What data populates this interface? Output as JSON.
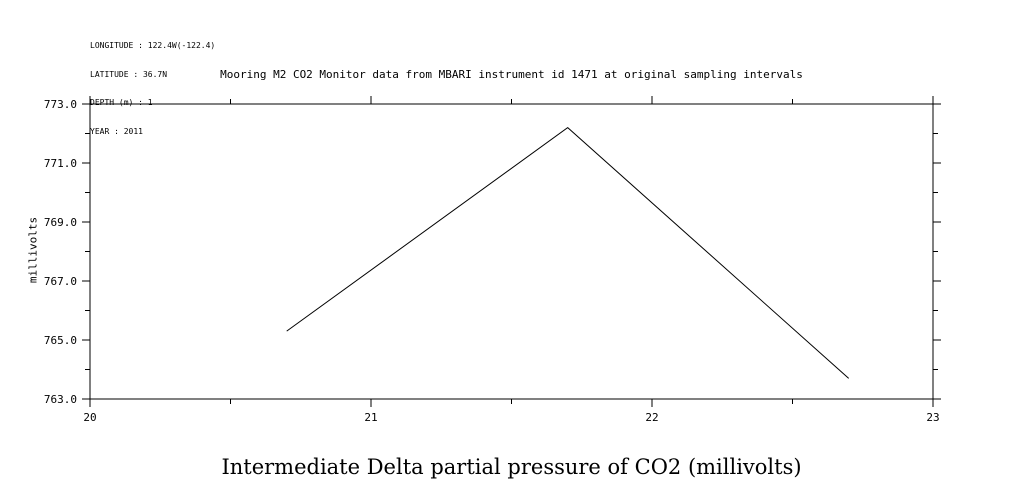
{
  "meta": {
    "longitude": "LONGITUDE : 122.4W(-122.4)",
    "latitude": "LATITUDE : 36.7N",
    "depth": "DEPTH (m) : 1",
    "year": "YEAR : 2011"
  },
  "chart_data": {
    "type": "line",
    "title": "Mooring M2 CO2 Monitor data from MBARI instrument id 1471 at original sampling intervals",
    "xlabel": "Intermediate Delta partial pressure of CO2 (millivolts)",
    "ylabel": "millivolts",
    "xlim": [
      20,
      23
    ],
    "ylim": [
      763.0,
      773.0
    ],
    "xticks": [
      20,
      21,
      22,
      23
    ],
    "xtick_labels": [
      "20",
      "21",
      "22",
      "23"
    ],
    "yticks": [
      763.0,
      765.0,
      767.0,
      769.0,
      771.0,
      773.0
    ],
    "ytick_labels": [
      "763.0",
      "765.0",
      "767.0",
      "769.0",
      "771.0",
      "773.0"
    ],
    "grid": false,
    "x": [
      20.7,
      21.7,
      22.7
    ],
    "series": [
      {
        "values": [
          765.3,
          772.2,
          763.7
        ],
        "color": "#000000"
      }
    ]
  }
}
